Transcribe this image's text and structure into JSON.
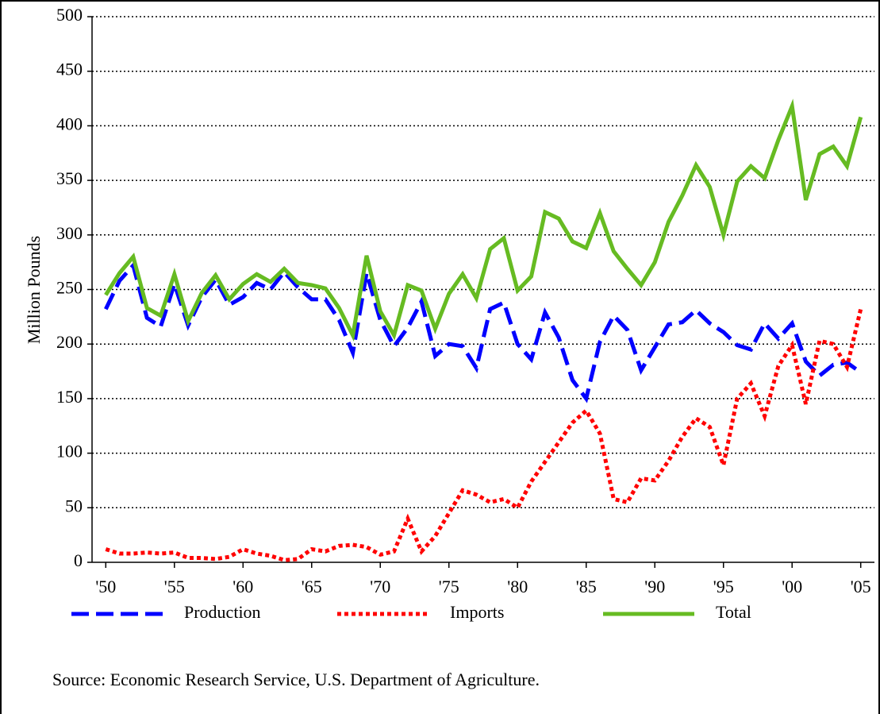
{
  "chart_data": {
    "type": "line",
    "y_label": "Million Pounds",
    "source": "Source: Economic Research Service, U.S. Department of Agriculture.",
    "x": [
      1950,
      1951,
      1952,
      1953,
      1954,
      1955,
      1956,
      1957,
      1958,
      1959,
      1960,
      1961,
      1962,
      1963,
      1964,
      1965,
      1966,
      1967,
      1968,
      1969,
      1970,
      1971,
      1972,
      1973,
      1974,
      1975,
      1976,
      1977,
      1978,
      1979,
      1980,
      1981,
      1982,
      1983,
      1984,
      1985,
      1986,
      1987,
      1988,
      1989,
      1990,
      1991,
      1992,
      1993,
      1994,
      1995,
      1996,
      1997,
      1998,
      1999,
      2000,
      2001,
      2002,
      2003,
      2004,
      2005
    ],
    "series": [
      {
        "name": "Production",
        "color": "#0000ff",
        "style": "dashed",
        "values": [
          232,
          258,
          272,
          224,
          216,
          255,
          217,
          243,
          259,
          236,
          243,
          256,
          250,
          266,
          252,
          241,
          241,
          222,
          192,
          265,
          222,
          198,
          215,
          239,
          189,
          200,
          198,
          178,
          232,
          238,
          200,
          186,
          229,
          206,
          167,
          150,
          202,
          226,
          213,
          176,
          197,
          218,
          220,
          231,
          219,
          211,
          199,
          195,
          219,
          205,
          219,
          184,
          171,
          181,
          183,
          174
        ]
      },
      {
        "name": "Imports",
        "color": "#ff0000",
        "style": "dotted",
        "values": [
          12,
          8,
          8,
          9,
          8,
          9,
          4,
          4,
          3,
          5,
          12,
          8,
          6,
          2,
          3,
          12,
          10,
          15,
          16,
          14,
          7,
          10,
          40,
          10,
          24,
          45,
          66,
          62,
          55,
          58,
          50,
          74,
          92,
          110,
          128,
          139,
          118,
          58,
          55,
          77,
          75,
          93,
          115,
          132,
          124,
          89,
          150,
          164,
          134,
          180,
          199,
          145,
          203,
          200,
          179,
          232
        ]
      },
      {
        "name": "Total",
        "color": "#66bb22",
        "style": "solid",
        "values": [
          245,
          265,
          280,
          233,
          226,
          264,
          221,
          247,
          263,
          241,
          255,
          264,
          257,
          269,
          256,
          254,
          251,
          233,
          208,
          281,
          230,
          208,
          254,
          249,
          214,
          246,
          264,
          242,
          287,
          297,
          249,
          262,
          321,
          315,
          294,
          288,
          320,
          285,
          269,
          254,
          275,
          312,
          336,
          364,
          344,
          300,
          349,
          363,
          352,
          387,
          418,
          332,
          374,
          381,
          363,
          408
        ]
      }
    ],
    "xlim": [
      1949,
      2006
    ],
    "xticks": [
      {
        "value": 1950,
        "label": "'50"
      },
      {
        "value": 1955,
        "label": "'55"
      },
      {
        "value": 1960,
        "label": "'60"
      },
      {
        "value": 1965,
        "label": "'65"
      },
      {
        "value": 1970,
        "label": "'70"
      },
      {
        "value": 1975,
        "label": "'75"
      },
      {
        "value": 1980,
        "label": "'80"
      },
      {
        "value": 1985,
        "label": "'85"
      },
      {
        "value": 1990,
        "label": "'90"
      },
      {
        "value": 1995,
        "label": "'95"
      },
      {
        "value": 2000,
        "label": "'00"
      },
      {
        "value": 2005,
        "label": "'05"
      }
    ],
    "ylim": [
      0,
      500
    ],
    "yticks": [
      0,
      50,
      100,
      150,
      200,
      250,
      300,
      350,
      400,
      450,
      500
    ],
    "grid": true
  }
}
